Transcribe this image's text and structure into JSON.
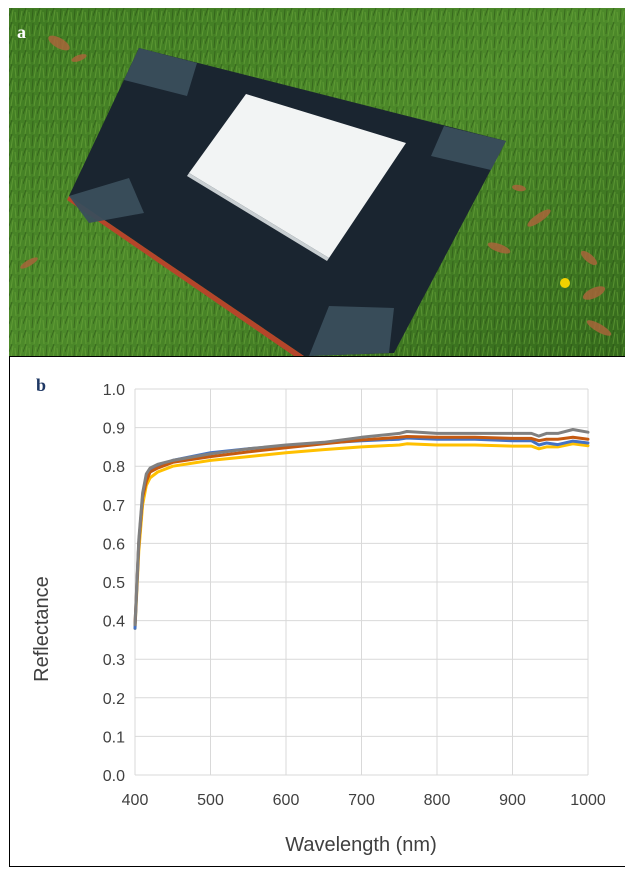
{
  "panels": {
    "a": {
      "label": "a"
    },
    "b": {
      "label": "b"
    }
  },
  "photo": {
    "subject": "white reference panel on black board lying on grass",
    "colors": {
      "grass": "#3f7a22",
      "board": "#1a2530",
      "panel": "#f2f4f4",
      "tape": "#3a4e5c"
    }
  },
  "chart_data": {
    "type": "line",
    "xlabel": "Wavelength (nm)",
    "ylabel": "Reflectance",
    "xlim": [
      400,
      1000
    ],
    "ylim": [
      0.0,
      1.0
    ],
    "xticks": [
      400,
      500,
      600,
      700,
      800,
      900,
      1000
    ],
    "yticks": [
      "0.0",
      "0.1",
      "0.2",
      "0.3",
      "0.4",
      "0.5",
      "0.6",
      "0.7",
      "0.8",
      "0.9",
      "1.0"
    ],
    "grid": true,
    "series": [
      {
        "color": "#FFC000",
        "x": [
          400,
          405,
          410,
          415,
          420,
          430,
          450,
          500,
          550,
          600,
          650,
          700,
          750,
          760,
          800,
          850,
          900,
          925,
          935,
          945,
          960,
          980,
          1000
        ],
        "y": [
          0.38,
          0.58,
          0.7,
          0.75,
          0.77,
          0.785,
          0.8,
          0.815,
          0.825,
          0.835,
          0.843,
          0.85,
          0.855,
          0.858,
          0.855,
          0.855,
          0.852,
          0.852,
          0.845,
          0.85,
          0.85,
          0.858,
          0.853
        ]
      },
      {
        "color": "#4472C4",
        "x": [
          400,
          405,
          410,
          415,
          420,
          430,
          450,
          500,
          550,
          600,
          650,
          700,
          750,
          760,
          800,
          850,
          900,
          925,
          935,
          945,
          960,
          980,
          1000
        ],
        "y": [
          0.38,
          0.6,
          0.72,
          0.77,
          0.79,
          0.8,
          0.815,
          0.835,
          0.845,
          0.853,
          0.86,
          0.866,
          0.87,
          0.873,
          0.87,
          0.87,
          0.866,
          0.866,
          0.855,
          0.86,
          0.856,
          0.865,
          0.86
        ]
      },
      {
        "color": "#C55A11",
        "x": [
          400,
          405,
          410,
          415,
          420,
          430,
          450,
          500,
          550,
          600,
          650,
          700,
          750,
          760,
          800,
          850,
          900,
          925,
          935,
          945,
          960,
          980,
          1000
        ],
        "y": [
          0.39,
          0.6,
          0.72,
          0.76,
          0.785,
          0.795,
          0.81,
          0.825,
          0.837,
          0.848,
          0.858,
          0.868,
          0.875,
          0.877,
          0.875,
          0.875,
          0.872,
          0.872,
          0.866,
          0.87,
          0.87,
          0.875,
          0.87
        ]
      },
      {
        "color": "#808080",
        "x": [
          400,
          405,
          410,
          415,
          420,
          430,
          450,
          500,
          550,
          600,
          650,
          700,
          750,
          760,
          800,
          850,
          900,
          925,
          935,
          945,
          960,
          980,
          1000
        ],
        "y": [
          0.39,
          0.61,
          0.73,
          0.78,
          0.795,
          0.805,
          0.815,
          0.832,
          0.845,
          0.855,
          0.862,
          0.875,
          0.885,
          0.89,
          0.885,
          0.885,
          0.885,
          0.885,
          0.878,
          0.885,
          0.885,
          0.895,
          0.888
        ]
      }
    ]
  }
}
